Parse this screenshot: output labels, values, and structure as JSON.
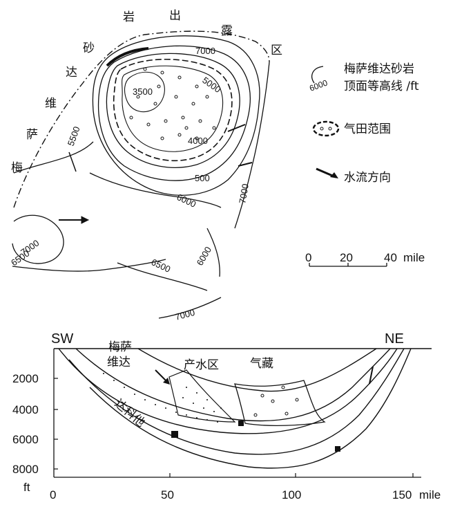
{
  "map": {
    "outcrop_label": [
      "梅",
      "萨",
      "维",
      "达",
      "砂",
      "岩",
      "出",
      "露",
      "区"
    ],
    "contour_labels": {
      "c3500": "3500",
      "c4000": "4000",
      "c5000": "5000",
      "c7000_top": "7000",
      "c5500": "5500",
      "c500": "500",
      "c6000_mid": "6000",
      "c7000_right": "7000",
      "c7000_left": "7000",
      "c6500_left": "6500",
      "c6500_bottom": "6500",
      "c6000_bottom": "6000",
      "c7000_bottom": "7000"
    }
  },
  "legend": {
    "contour_sample": "6000",
    "contour_line1": "梅萨维达砂岩",
    "contour_line2": "顶面等高线 /ft",
    "gas_field": "气田范围",
    "water_flow": "水流方向"
  },
  "scale_bar": {
    "ticks": [
      "0",
      "20",
      "40"
    ],
    "unit": "mile"
  },
  "section": {
    "sw": "SW",
    "ne": "NE",
    "mesaverde_line1": "梅萨",
    "mesaverde_line2": "维达",
    "water_zone": "产水区",
    "gas_reservoir": "气藏",
    "dakota": "达科他",
    "y_ticks": [
      "2000",
      "4000",
      "6000",
      "8000"
    ],
    "y_unit": "ft",
    "x_ticks": [
      "0",
      "50",
      "100",
      "150"
    ],
    "x_unit": "mile"
  }
}
